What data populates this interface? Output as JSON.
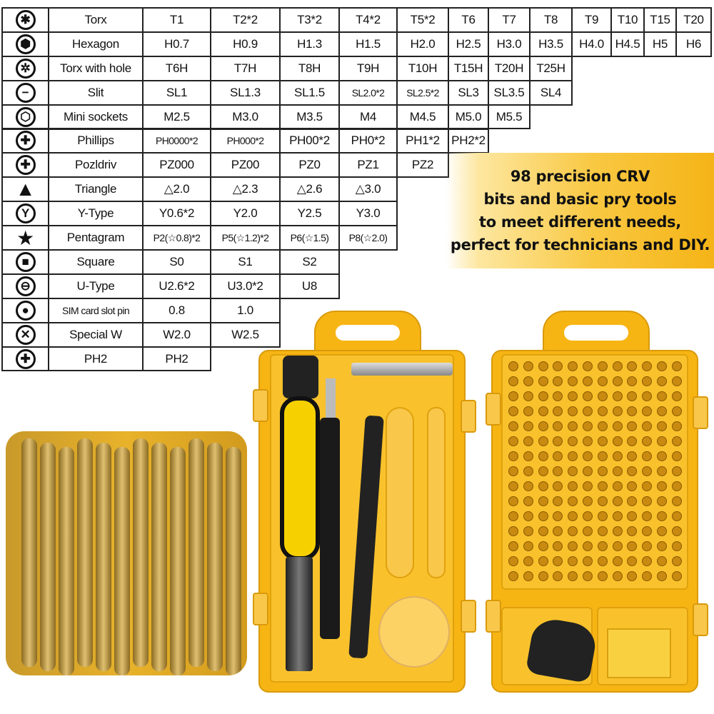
{
  "bit_table": {
    "rows": [
      {
        "name": "Torx",
        "icon": "torx-icon",
        "values": [
          "T1",
          "T2*2",
          "T3*2",
          "T4*2",
          "T5*2",
          "T6",
          "T7",
          "T8",
          "T9",
          "T10",
          "T15",
          "T20"
        ]
      },
      {
        "name": "Hexagon",
        "icon": "hexagon-icon",
        "values": [
          "H0.7",
          "H0.9",
          "H1.3",
          "H1.5",
          "H2.0",
          "H2.5",
          "H3.0",
          "H3.5",
          "H4.0",
          "H4.5",
          "H5",
          "H6"
        ]
      },
      {
        "name": "Torx with hole",
        "icon": "torx-with-hole-icon",
        "values": [
          "T6H",
          "T7H",
          "T8H",
          "T9H",
          "T10H",
          "T15H",
          "T20H",
          "T25H"
        ]
      },
      {
        "name": "Slit",
        "icon": "slit-icon",
        "values": [
          "SL1",
          "SL1.3",
          "SL1.5",
          "SL2.0*2",
          "SL2.5*2",
          "SL3",
          "SL3.5",
          "SL4"
        ]
      },
      {
        "name": "Mini sockets",
        "icon": "mini-socket-icon",
        "values": [
          "M2.5",
          "M3.0",
          "M3.5",
          "M4",
          "M4.5",
          "M5.0",
          "M5.5"
        ]
      },
      {
        "name": "Phillips",
        "icon": "phillips-icon",
        "values": [
          "PH0000*2",
          "PH000*2",
          "PH00*2",
          "PH0*2",
          "PH1*2",
          "PH2*2"
        ]
      },
      {
        "name": "Pozldriv",
        "icon": "pozidriv-icon",
        "values": [
          "PZ000",
          "PZ00",
          "PZ0",
          "PZ1",
          "PZ2"
        ]
      },
      {
        "name": "Triangle",
        "icon": "triangle-icon",
        "values": [
          "△2.0",
          "△2.3",
          "△2.6",
          "△3.0"
        ]
      },
      {
        "name": "Y-Type",
        "icon": "y-type-icon",
        "values": [
          "Y0.6*2",
          "Y2.0",
          "Y2.5",
          "Y3.0"
        ]
      },
      {
        "name": "Pentagram",
        "icon": "star-icon",
        "values": [
          "P2(☆0.8)*2",
          "P5(☆1.2)*2",
          "P6(☆1.5)",
          "P8(☆2.0)"
        ]
      },
      {
        "name": "Square",
        "icon": "square-icon",
        "values": [
          "S0",
          "S1",
          "S2"
        ]
      },
      {
        "name": "U-Type",
        "icon": "u-type-icon",
        "values": [
          "U2.6*2",
          "U3.0*2",
          "U8"
        ]
      },
      {
        "name": "SIM card slot pin",
        "icon": "sim-pin-icon",
        "values": [
          "0.8",
          "1.0"
        ]
      },
      {
        "name": "Special W",
        "icon": "special-w-icon",
        "values": [
          "W2.0",
          "W2.5"
        ]
      },
      {
        "name": "PH2",
        "icon": "ph2-icon",
        "values": [
          "PH2"
        ]
      }
    ]
  },
  "banner": {
    "lines": [
      "98 precision CRV",
      "bits and basic pry tools",
      "to meet different needs,",
      "perfect for technicians and DIY."
    ]
  },
  "colors": {
    "case": "#f7b514",
    "banner": "#f9c842",
    "handle_black": "#111111"
  }
}
